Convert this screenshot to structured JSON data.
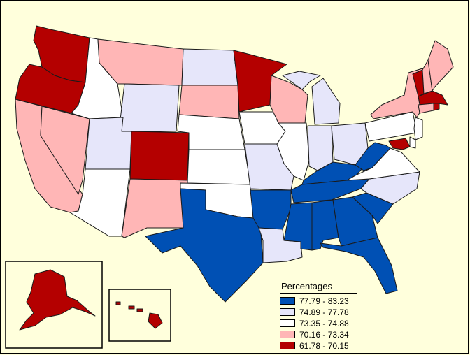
{
  "legend": {
    "title": "Percentages",
    "items": [
      {
        "label": "77.79 - 83.23",
        "color": "#0050b4"
      },
      {
        "label": "74.89 - 77.78",
        "color": "#e6e6fa"
      },
      {
        "label": "73.35 - 74.88",
        "color": "#ffffff"
      },
      {
        "label": "70.16 - 73.34",
        "color": "#ffb6b6"
      },
      {
        "label": "61.78 - 70.15",
        "color": "#b40000"
      }
    ]
  },
  "classes": {
    "c1": "#0050b4",
    "c2": "#e6e6fa",
    "c3": "#ffffff",
    "c4": "#ffb6b6",
    "c5": "#b40000"
  },
  "states": {
    "WA": "c5",
    "OR": "c5",
    "CA": "c4",
    "NV": "c4",
    "ID": "c3",
    "MT": "c4",
    "WY": "c2",
    "UT": "c2",
    "AZ": "c3",
    "CO": "c5",
    "NM": "c4",
    "ND": "c2",
    "SD": "c4",
    "NE": "c3",
    "KS": "c3",
    "OK": "c3",
    "TX": "c1",
    "MN": "c5",
    "IA": "c3",
    "MO": "c2",
    "AR": "c1",
    "LA": "c2",
    "WI": "c4",
    "IL": "c3",
    "MI": "c2",
    "IN": "c2",
    "OH": "c2",
    "KY": "c1",
    "TN": "c1",
    "MS": "c1",
    "AL": "c1",
    "GA": "c1",
    "FL": "c1",
    "SC": "c1",
    "NC": "c2",
    "VA": "c3",
    "WV": "c1",
    "PA": "c3",
    "NY": "c4",
    "VT": "c5",
    "NH": "c4",
    "ME": "c4",
    "MA": "c5",
    "RI": "c5",
    "CT": "c4",
    "NJ": "c3",
    "DE": "c3",
    "MD": "c5",
    "AK": "c5",
    "HI": "c5"
  }
}
